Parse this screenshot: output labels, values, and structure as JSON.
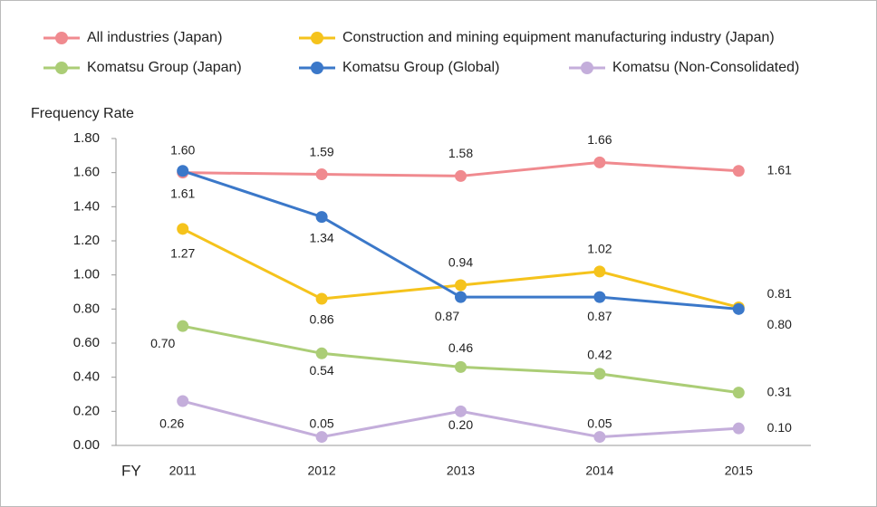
{
  "chart_data": {
    "type": "line",
    "ylabel": "Frequency Rate",
    "xlabel": "FY",
    "categories": [
      "2011",
      "2012",
      "2013",
      "2014",
      "2015"
    ],
    "ylim": [
      0,
      1.8
    ],
    "yticks": [
      {
        "value": 0,
        "label": "0.00"
      },
      {
        "value": 0.2,
        "label": "0.20"
      },
      {
        "value": 0.4,
        "label": "0.40"
      },
      {
        "value": 0.6,
        "label": "0.60"
      },
      {
        "value": 0.8,
        "label": "0.80"
      },
      {
        "value": 1.0,
        "label": "1.00"
      },
      {
        "value": 1.2,
        "label": "1.20"
      },
      {
        "value": 1.4,
        "label": "1.40"
      },
      {
        "value": 1.6,
        "label": "1.60"
      },
      {
        "value": 1.8,
        "label": "1.80"
      }
    ],
    "series": [
      {
        "name": "All industries (Japan)",
        "color": "#f08a8f",
        "values": [
          1.6,
          1.59,
          1.58,
          1.66,
          1.61
        ],
        "value_labels": [
          "1.60",
          "1.59",
          "1.58",
          "1.66",
          "1.61"
        ]
      },
      {
        "name": "Construction and mining equipment manufacturing industry (Japan)",
        "color": "#f5c31c",
        "values": [
          1.27,
          0.86,
          0.94,
          1.02,
          0.81
        ],
        "value_labels": [
          "1.27",
          "0.86",
          "0.94",
          "1.02",
          "0.81"
        ]
      },
      {
        "name": "Komatsu Group (Japan)",
        "color": "#abcd76",
        "values": [
          0.7,
          0.54,
          0.46,
          0.42,
          0.31
        ],
        "value_labels": [
          "0.70",
          "0.54",
          "0.46",
          "0.42",
          "0.31"
        ]
      },
      {
        "name": "Komatsu Group (Global)",
        "color": "#3b78c9",
        "values": [
          1.61,
          1.34,
          0.87,
          0.87,
          0.8
        ],
        "value_labels": [
          "1.61",
          "1.34",
          "0.87",
          "0.87",
          "0.80"
        ]
      },
      {
        "name": "Komatsu (Non-Consolidated)",
        "color": "#c4aedb",
        "values": [
          0.26,
          0.05,
          0.2,
          0.05,
          0.1
        ],
        "value_labels": [
          "0.26",
          "0.05",
          "0.20",
          "0.05",
          "0.10"
        ]
      }
    ]
  }
}
